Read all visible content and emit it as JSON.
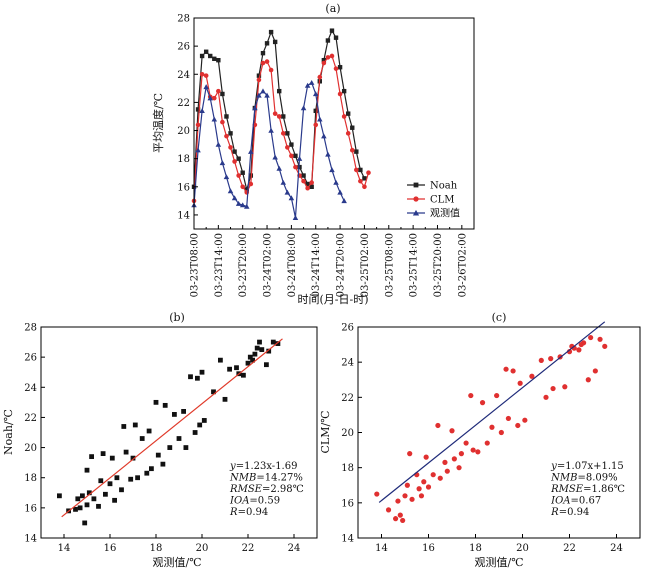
{
  "chart_data": [
    {
      "id": "a",
      "panel_label": "(a)",
      "type": "line",
      "ylabel": "平均温度/℃",
      "xlabel": "时间(月-日-时)",
      "ylim": [
        13,
        28
      ],
      "yticks": [
        14,
        16,
        18,
        20,
        22,
        24,
        26,
        28
      ],
      "x_tick_labels": [
        "03-23T08:00",
        "03-23T14:00",
        "03-23T20:00",
        "03-24T02:00",
        "03-24T08:00",
        "03-24T14:00",
        "03-24T20:00",
        "03-25T02:00",
        "03-25T08:00",
        "03-25T14:00",
        "03-25T20:00",
        "03-26T02:00"
      ],
      "x_step_hours": 1,
      "x_range_hours": [
        0,
        69
      ],
      "grid": false,
      "legend_position": "bottom-right",
      "series": [
        {
          "name": "Noah",
          "color": "#222222",
          "marker": "square",
          "values": [
            16.0,
            21.5,
            25.3,
            25.6,
            25.3,
            25.1,
            25.0,
            22.6,
            21.0,
            19.8,
            18.5,
            18.0,
            17.0,
            15.8,
            16.8,
            21.6,
            23.9,
            25.5,
            26.2,
            27.0,
            26.3,
            22.8,
            21.0,
            19.8,
            19.0,
            18.2,
            17.4,
            16.8,
            16.2,
            16.0,
            21.4,
            23.5,
            25.0,
            26.4,
            27.1,
            26.6,
            24.5,
            22.8,
            21.2,
            20.2,
            18.5,
            17.2,
            16.6
          ]
        },
        {
          "name": "CLM",
          "color": "#e03030",
          "marker": "circle",
          "values": [
            15.0,
            20.4,
            24.0,
            23.9,
            22.4,
            22.3,
            22.8,
            20.6,
            19.6,
            18.8,
            17.8,
            16.8,
            16.0,
            15.6,
            16.2,
            20.4,
            23.6,
            24.8,
            24.9,
            24.3,
            21.2,
            21.0,
            19.8,
            18.8,
            18.2,
            17.4,
            16.8,
            16.4,
            15.9,
            16.3,
            20.4,
            23.8,
            24.8,
            25.2,
            25.3,
            24.4,
            22.6,
            21.0,
            19.8,
            18.6,
            17.2,
            16.4,
            16.0,
            17.0
          ]
        },
        {
          "name": "观测值",
          "color": "#2a3a8c",
          "marker": "triangle",
          "values": [
            14.7,
            18.6,
            21.4,
            23.1,
            22.3,
            20.8,
            19.0,
            17.7,
            16.7,
            15.7,
            15.2,
            14.8,
            14.7,
            14.6,
            18.5,
            21.6,
            22.5,
            22.8,
            22.5,
            20.0,
            18.1,
            17.3,
            16.3,
            15.6,
            15.2,
            13.8,
            18.0,
            21.6,
            23.2,
            23.4,
            22.6,
            20.8,
            19.6,
            18.3,
            17.2,
            16.3,
            15.6,
            15.0
          ]
        }
      ]
    },
    {
      "id": "b",
      "panel_label": "(b)",
      "type": "scatter",
      "xlabel": "观测值/℃",
      "ylabel": "Noah/℃",
      "xlim": [
        13,
        25
      ],
      "ylim": [
        14,
        28
      ],
      "xticks": [
        14,
        16,
        18,
        20,
        22,
        24
      ],
      "yticks": [
        14,
        16,
        18,
        20,
        22,
        24,
        26,
        28
      ],
      "marker": "square",
      "point_color": "#111111",
      "fit_line": {
        "slope": 1.23,
        "intercept": -1.69,
        "x_range": [
          13.9,
          23.5
        ],
        "color": "#e03a2a"
      },
      "stats": [
        "y=1.23x-1.69",
        "NMB=14.27%",
        "RMSE=2.98℃",
        "IOA=0.59",
        "R=0.94"
      ],
      "points": [
        [
          13.8,
          16.8
        ],
        [
          14.2,
          15.8
        ],
        [
          14.5,
          15.9
        ],
        [
          14.6,
          16.6
        ],
        [
          14.7,
          16.0
        ],
        [
          14.8,
          16.8
        ],
        [
          14.9,
          15.0
        ],
        [
          15.0,
          18.5
        ],
        [
          15.0,
          16.2
        ],
        [
          15.1,
          17.0
        ],
        [
          15.2,
          19.4
        ],
        [
          15.3,
          16.6
        ],
        [
          15.5,
          16.1
        ],
        [
          15.6,
          17.8
        ],
        [
          15.7,
          19.6
        ],
        [
          15.8,
          16.9
        ],
        [
          16.0,
          17.6
        ],
        [
          16.1,
          19.3
        ],
        [
          16.2,
          16.5
        ],
        [
          16.3,
          18.0
        ],
        [
          16.5,
          17.2
        ],
        [
          16.6,
          21.4
        ],
        [
          16.7,
          19.7
        ],
        [
          16.9,
          17.9
        ],
        [
          17.0,
          19.3
        ],
        [
          17.1,
          21.5
        ],
        [
          17.2,
          18.0
        ],
        [
          17.4,
          20.6
        ],
        [
          17.6,
          18.3
        ],
        [
          17.7,
          21.1
        ],
        [
          17.8,
          18.6
        ],
        [
          18.0,
          23.0
        ],
        [
          18.1,
          19.5
        ],
        [
          18.3,
          18.9
        ],
        [
          18.4,
          22.8
        ],
        [
          18.6,
          20.0
        ],
        [
          18.8,
          22.2
        ],
        [
          19.0,
          20.6
        ],
        [
          19.2,
          22.4
        ],
        [
          19.3,
          20.0
        ],
        [
          19.5,
          24.7
        ],
        [
          19.7,
          21.0
        ],
        [
          19.8,
          24.6
        ],
        [
          19.9,
          21.5
        ],
        [
          20.0,
          25.0
        ],
        [
          20.1,
          21.8
        ],
        [
          20.5,
          23.7
        ],
        [
          20.8,
          25.8
        ],
        [
          21.0,
          23.2
        ],
        [
          21.2,
          25.2
        ],
        [
          21.5,
          25.3
        ],
        [
          21.6,
          24.9
        ],
        [
          21.8,
          24.8
        ],
        [
          22.0,
          25.6
        ],
        [
          22.1,
          26.0
        ],
        [
          22.2,
          25.8
        ],
        [
          22.3,
          26.2
        ],
        [
          22.4,
          26.6
        ],
        [
          22.5,
          27.0
        ],
        [
          22.6,
          26.5
        ],
        [
          22.8,
          25.5
        ],
        [
          22.9,
          26.4
        ],
        [
          23.1,
          27.0
        ],
        [
          23.3,
          26.9
        ]
      ]
    },
    {
      "id": "c",
      "panel_label": "(c)",
      "type": "scatter",
      "xlabel": "观测值/℃",
      "ylabel": "CLM/℃",
      "xlim": [
        13,
        25
      ],
      "ylim": [
        14,
        26
      ],
      "xticks": [
        14,
        16,
        18,
        20,
        22,
        24
      ],
      "yticks": [
        14,
        16,
        18,
        20,
        22,
        24,
        26
      ],
      "marker": "circle",
      "point_color": "#e03030",
      "fit_line": {
        "slope": 1.07,
        "intercept": 1.15,
        "x_range": [
          13.9,
          23.5
        ],
        "color": "#1f2b7a"
      },
      "stats": [
        "y=1.07x+1.15",
        "NMB=8.09%",
        "RMSE=1.86℃",
        "IOA=0.67",
        "R=0.94"
      ],
      "points": [
        [
          13.8,
          16.5
        ],
        [
          14.3,
          15.6
        ],
        [
          14.6,
          15.1
        ],
        [
          14.7,
          16.1
        ],
        [
          14.8,
          15.3
        ],
        [
          14.9,
          15.0
        ],
        [
          15.0,
          16.4
        ],
        [
          15.1,
          17.0
        ],
        [
          15.2,
          18.8
        ],
        [
          15.3,
          16.2
        ],
        [
          15.5,
          17.6
        ],
        [
          15.6,
          16.8
        ],
        [
          15.7,
          16.4
        ],
        [
          15.8,
          17.2
        ],
        [
          15.9,
          18.6
        ],
        [
          16.0,
          16.9
        ],
        [
          16.2,
          17.6
        ],
        [
          16.4,
          20.4
        ],
        [
          16.5,
          17.4
        ],
        [
          16.7,
          18.3
        ],
        [
          16.8,
          17.8
        ],
        [
          17.0,
          20.1
        ],
        [
          17.1,
          18.5
        ],
        [
          17.3,
          18.0
        ],
        [
          17.4,
          18.8
        ],
        [
          17.6,
          19.4
        ],
        [
          17.8,
          22.1
        ],
        [
          17.9,
          19.0
        ],
        [
          18.1,
          18.9
        ],
        [
          18.3,
          21.7
        ],
        [
          18.5,
          19.4
        ],
        [
          18.7,
          20.3
        ],
        [
          18.9,
          22.1
        ],
        [
          19.1,
          20.0
        ],
        [
          19.3,
          23.6
        ],
        [
          19.4,
          20.8
        ],
        [
          19.6,
          23.5
        ],
        [
          19.8,
          20.4
        ],
        [
          19.9,
          22.8
        ],
        [
          20.1,
          20.7
        ],
        [
          20.4,
          23.2
        ],
        [
          20.8,
          24.1
        ],
        [
          21.0,
          22.0
        ],
        [
          21.2,
          24.2
        ],
        [
          21.3,
          22.5
        ],
        [
          21.6,
          24.3
        ],
        [
          21.8,
          22.6
        ],
        [
          22.0,
          24.6
        ],
        [
          22.1,
          24.9
        ],
        [
          22.2,
          24.8
        ],
        [
          22.4,
          24.7
        ],
        [
          22.5,
          25.0
        ],
        [
          22.6,
          25.1
        ],
        [
          22.8,
          23.0
        ],
        [
          22.9,
          25.4
        ],
        [
          23.1,
          23.5
        ],
        [
          23.3,
          25.3
        ],
        [
          23.5,
          24.9
        ]
      ]
    }
  ]
}
